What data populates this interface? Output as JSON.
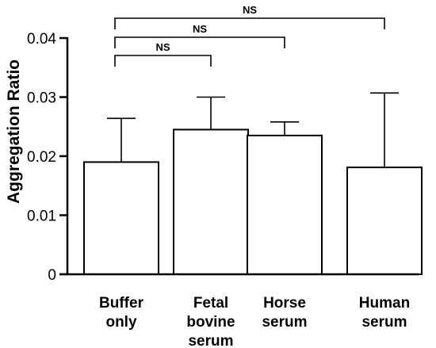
{
  "chart_data": {
    "type": "bar",
    "title": "",
    "ylabel": "Aggregation Ratio",
    "xlabel": "",
    "ylim": [
      0,
      0.04
    ],
    "yticks": [
      0,
      0.01,
      0.02,
      0.03,
      0.04
    ],
    "ytick_labels": [
      "0",
      "0.01",
      "0.02",
      "0.03",
      "0.04"
    ],
    "categories": [
      [
        "Buffer",
        "only"
      ],
      [
        "Fetal",
        "bovine",
        "serum"
      ],
      [
        "Horse",
        "serum"
      ],
      [
        "Human",
        "serum"
      ]
    ],
    "values": [
      0.019,
      0.0245,
      0.0235,
      0.0181
    ],
    "error_upper": [
      0.0264,
      0.03,
      0.0258,
      0.0307
    ],
    "significance": [
      {
        "from": 0,
        "to": 1,
        "label": "NS"
      },
      {
        "from": 0,
        "to": 2,
        "label": "NS"
      },
      {
        "from": 0,
        "to": 3,
        "label": "NS"
      }
    ],
    "grid": false,
    "legend": "none"
  }
}
